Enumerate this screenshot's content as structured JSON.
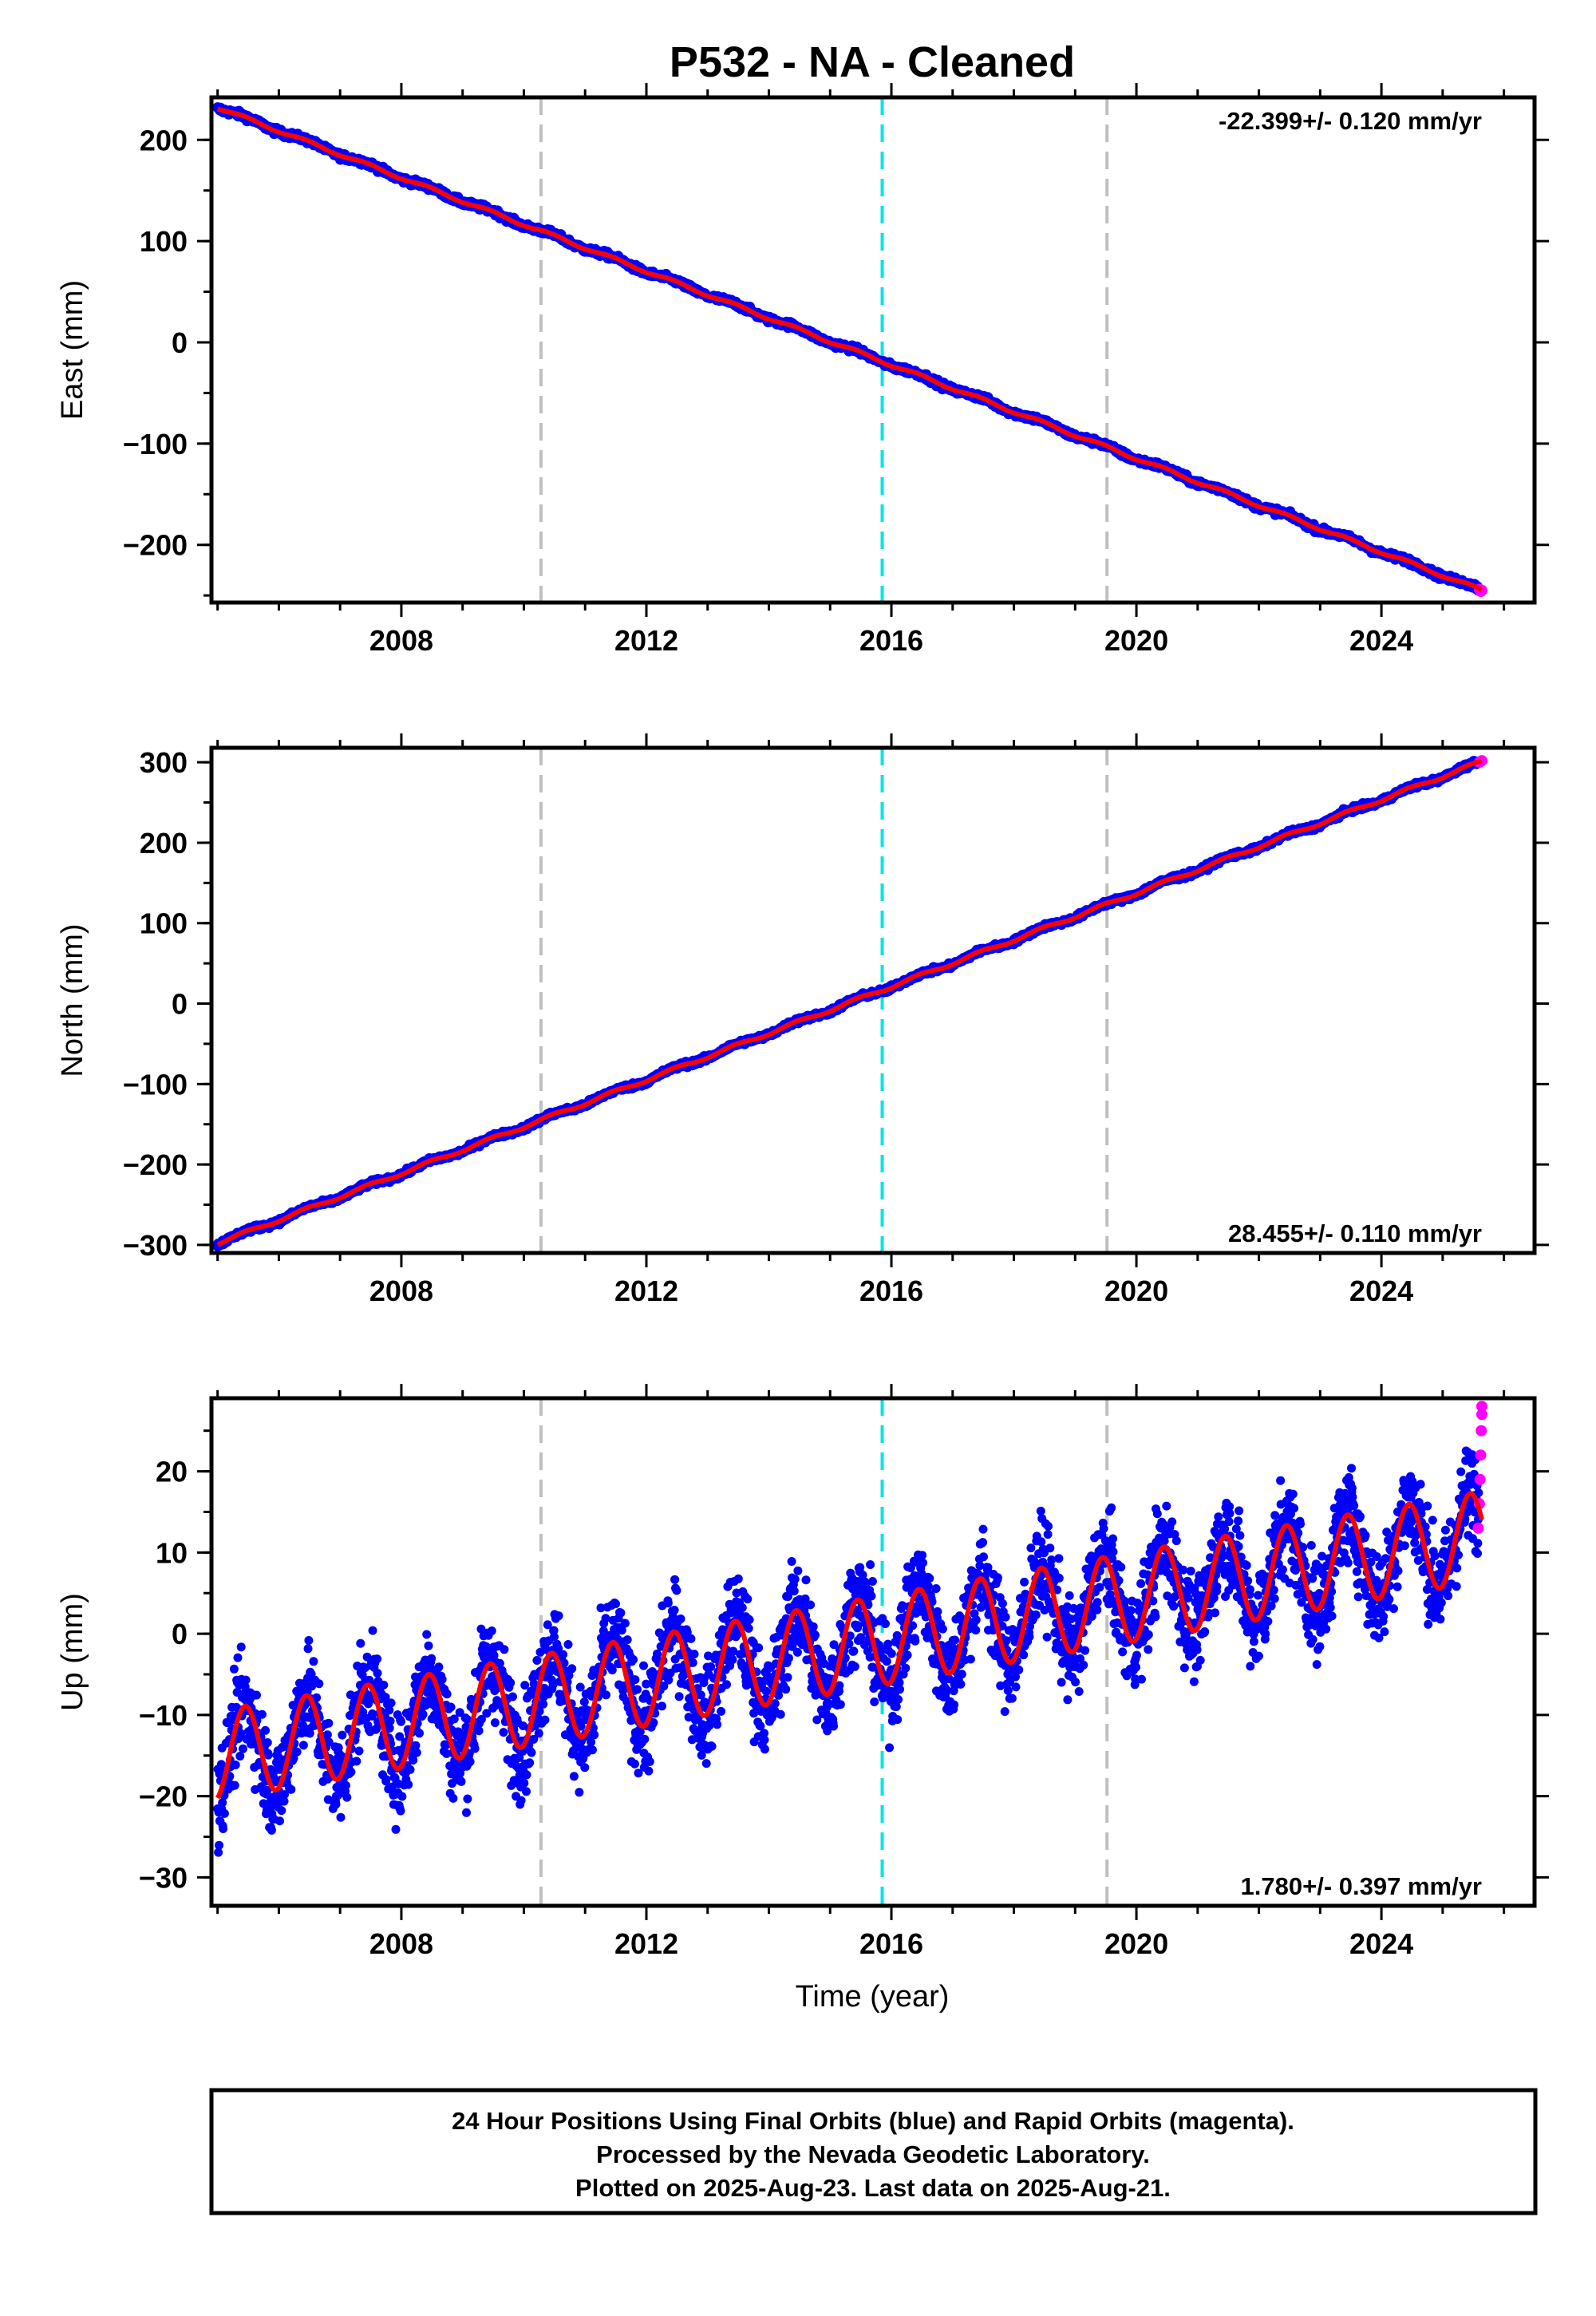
{
  "title": "P532  - NA - Cleaned",
  "colors": {
    "final_orbits": "#0000ff",
    "rapid_orbits": "#ff00ff",
    "model_fit": "#ff0000",
    "event_line": "#c0c0c0",
    "special_event_line": "#00e5e5"
  },
  "xaxis": {
    "label": "Time (year)",
    "range": [
      2004.9,
      2026.5
    ],
    "ticks": [
      2008,
      2012,
      2016,
      2020,
      2024
    ]
  },
  "event_lines": [
    {
      "year": 2010.28,
      "style": "gray-dashed"
    },
    {
      "year": 2015.85,
      "style": "cyan-dashed"
    },
    {
      "year": 2019.52,
      "style": "gray-dashed"
    }
  ],
  "chart_data": [
    {
      "type": "scatter",
      "panel": "east",
      "ylabel": "East (mm)",
      "ylim": [
        -257,
        242
      ],
      "yticks": [
        200,
        100,
        0,
        -100,
        -200
      ],
      "rate_label": "-22.399+/- 0.120 mm/yr",
      "rate_position": "top-right",
      "start_year": 2005.0,
      "end_year": 2025.64,
      "start_value": 232,
      "end_value": -245,
      "seasonal_amplitude": 1.5,
      "scatter_noise": 1.5,
      "rapid_points": [
        [
          2025.6,
          -244
        ],
        [
          2025.62,
          -246
        ],
        [
          2025.64,
          -245
        ]
      ]
    },
    {
      "type": "scatter",
      "panel": "north",
      "ylabel": "North (mm)",
      "ylim": [
        -310,
        318
      ],
      "yticks": [
        300,
        200,
        100,
        0,
        -100,
        -200,
        -300
      ],
      "rate_label": "28.455+/- 0.110 mm/yr",
      "rate_position": "bottom-right",
      "start_year": 2005.0,
      "end_year": 2025.64,
      "start_value": -298,
      "end_value": 301,
      "seasonal_amplitude": 2,
      "scatter_noise": 1.5,
      "rapid_points": [
        [
          2025.6,
          300
        ],
        [
          2025.62,
          301
        ],
        [
          2025.64,
          302
        ]
      ]
    },
    {
      "type": "scatter",
      "panel": "up",
      "ylabel": "Up (mm)",
      "ylim": [
        -33.5,
        29
      ],
      "yticks": [
        20,
        10,
        0,
        -10,
        -20,
        -30
      ],
      "rate_label": "1.780+/- 0.397 mm/yr",
      "rate_position": "bottom-right",
      "start_year": 2005.0,
      "end_year": 2025.64,
      "start_value": -15,
      "end_value": 12,
      "seasonal_amplitude": 5.5,
      "scatter_noise": 3,
      "rapid_points": [
        [
          2025.58,
          13
        ],
        [
          2025.6,
          16
        ],
        [
          2025.61,
          19
        ],
        [
          2025.62,
          22
        ],
        [
          2025.63,
          25
        ],
        [
          2025.64,
          27
        ],
        [
          2025.64,
          28
        ]
      ]
    }
  ],
  "footer": {
    "line1": "24 Hour Positions Using Final Orbits (blue) and Rapid Orbits (magenta).",
    "line2": "Processed by the Nevada Geodetic Laboratory.",
    "line3": "Plotted on 2025-Aug-23. Last data on 2025-Aug-21."
  }
}
